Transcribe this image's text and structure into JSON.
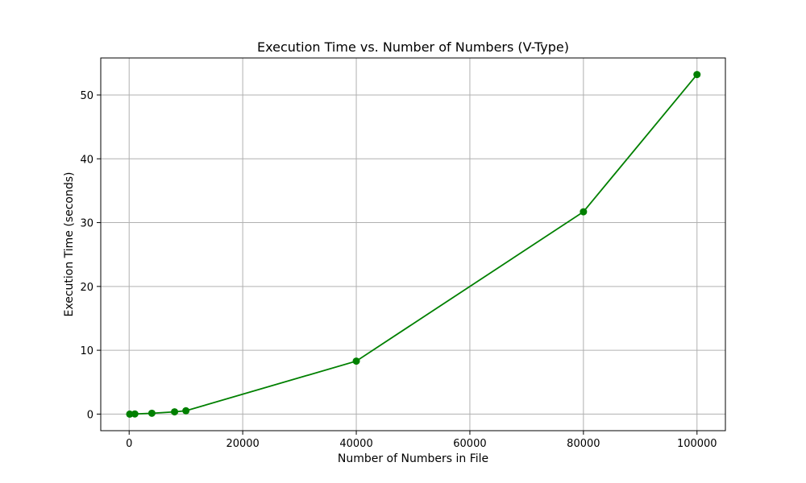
{
  "chart_data": {
    "type": "line",
    "title": "Execution Time vs. Number of Numbers (V-Type)",
    "xlabel": "Number of Numbers in File",
    "ylabel": "Execution Time (seconds)",
    "xlim": [
      -5000,
      105000
    ],
    "ylim": [
      -2.6,
      55.8
    ],
    "xticks": [
      0,
      20000,
      40000,
      60000,
      80000,
      100000
    ],
    "yticks": [
      0,
      10,
      20,
      30,
      40,
      50
    ],
    "grid": true,
    "color": "#008000",
    "marker": "circle",
    "series": [
      {
        "x": [
          100,
          1000,
          4000,
          8000,
          10000,
          40000,
          80000,
          100000
        ],
        "y": [
          0.0,
          0.02,
          0.13,
          0.35,
          0.52,
          8.3,
          31.7,
          53.2
        ]
      }
    ]
  }
}
